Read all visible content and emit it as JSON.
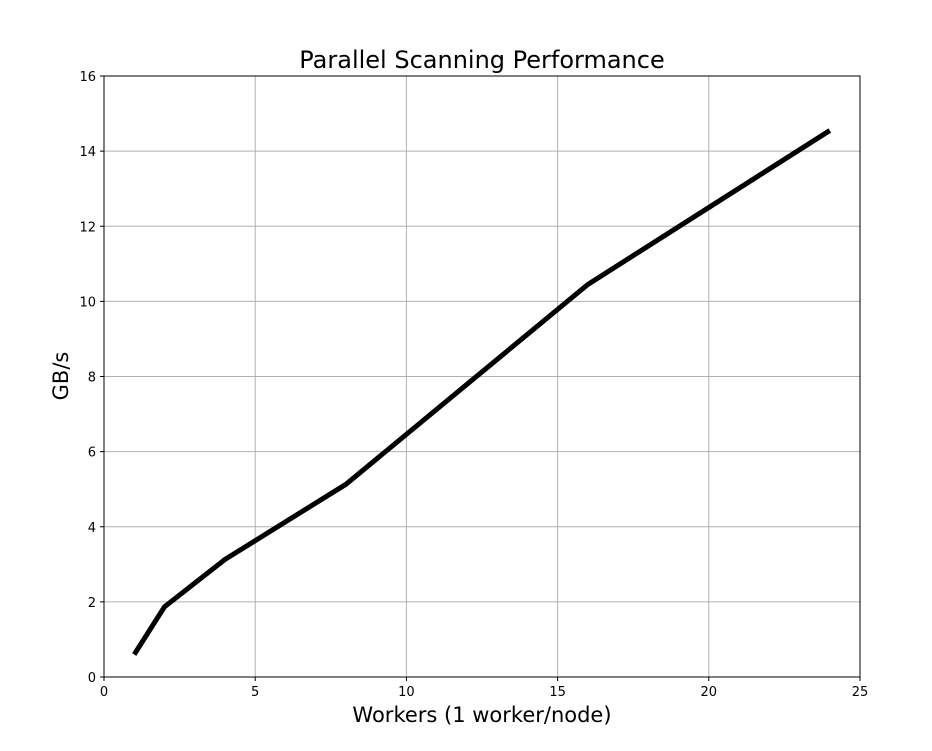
{
  "chart_data": {
    "type": "line",
    "title": "Parallel Scanning Performance",
    "xlabel": "Workers (1 worker/node)",
    "ylabel": "GB/s",
    "xlim": [
      0,
      25
    ],
    "ylim": [
      0,
      16
    ],
    "xticks": [
      0,
      5,
      10,
      15,
      20,
      25
    ],
    "yticks": [
      0,
      2,
      4,
      6,
      8,
      10,
      12,
      14,
      16
    ],
    "grid": true,
    "series": [
      {
        "color": "#000000",
        "x": [
          1,
          2,
          4,
          8,
          16,
          24
        ],
        "y": [
          0.6,
          1.87,
          3.13,
          5.13,
          10.45,
          14.55
        ]
      }
    ]
  }
}
